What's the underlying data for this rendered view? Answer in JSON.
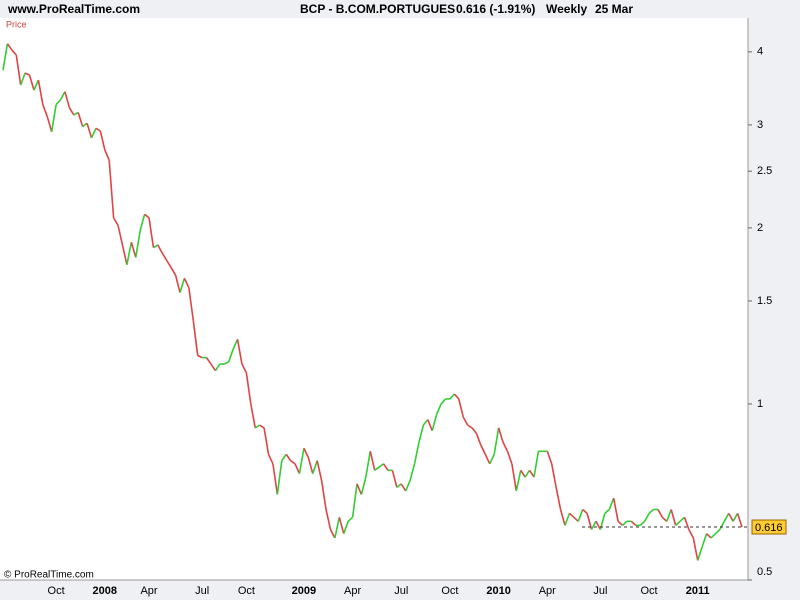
{
  "header": {
    "site": "www.ProRealTime.com",
    "symbol": "BCP - B.COM.PORTUGUES",
    "quote": "0.616 (-1.91%)",
    "period": "Weekly",
    "date": "25 Mar"
  },
  "footer": "© ProRealTime.com",
  "chart_data": {
    "type": "line",
    "log_scale": true,
    "grid": false,
    "categories": [
      null,
      null,
      null,
      null,
      null,
      null,
      null,
      null,
      null,
      null,
      null,
      null,
      "Oct",
      null,
      null,
      null,
      null,
      null,
      null,
      null,
      null,
      null,
      null,
      "2008",
      null,
      null,
      null,
      null,
      null,
      null,
      null,
      null,
      null,
      "Apr",
      null,
      null,
      null,
      null,
      null,
      null,
      null,
      null,
      null,
      null,
      null,
      "Jul",
      null,
      null,
      null,
      null,
      null,
      null,
      null,
      null,
      null,
      "Oct",
      null,
      null,
      null,
      null,
      null,
      null,
      null,
      null,
      null,
      null,
      null,
      null,
      "2009",
      null,
      null,
      null,
      null,
      null,
      null,
      null,
      null,
      null,
      null,
      "Apr",
      null,
      null,
      null,
      null,
      null,
      null,
      null,
      null,
      null,
      null,
      "Jul",
      null,
      null,
      null,
      null,
      null,
      null,
      null,
      null,
      null,
      null,
      "Oct",
      null,
      null,
      null,
      null,
      null,
      null,
      null,
      null,
      null,
      null,
      "2010",
      null,
      null,
      null,
      null,
      null,
      null,
      null,
      null,
      null,
      null,
      "Apr",
      null,
      null,
      null,
      null,
      null,
      null,
      null,
      null,
      null,
      null,
      null,
      "Jul",
      null,
      null,
      null,
      null,
      null,
      null,
      null,
      null,
      null,
      null,
      "Oct",
      null,
      null,
      null,
      null,
      null,
      null,
      null,
      null,
      null,
      null,
      "2011",
      null,
      null,
      null,
      null,
      null,
      null,
      null,
      null,
      null,
      null
    ],
    "series": [
      {
        "name": "Price",
        "up_color": "#33cc33",
        "down_color": "#dd4444",
        "values": [
          3.72,
          4.13,
          4.03,
          3.95,
          3.51,
          3.68,
          3.65,
          3.44,
          3.58,
          3.25,
          3.1,
          2.92,
          3.25,
          3.31,
          3.42,
          3.21,
          3.12,
          3.15,
          2.98,
          3.02,
          2.85,
          2.96,
          2.93,
          2.72,
          2.61,
          2.08,
          2.02,
          1.87,
          1.73,
          1.89,
          1.78,
          1.98,
          2.11,
          2.08,
          1.85,
          1.87,
          1.81,
          1.76,
          1.71,
          1.66,
          1.55,
          1.64,
          1.58,
          1.39,
          1.21,
          1.2,
          1.2,
          1.17,
          1.14,
          1.17,
          1.17,
          1.18,
          1.24,
          1.29,
          1.17,
          1.13,
          1.0,
          0.91,
          0.92,
          0.91,
          0.82,
          0.79,
          0.7,
          0.8,
          0.82,
          0.8,
          0.79,
          0.76,
          0.84,
          0.81,
          0.76,
          0.8,
          0.74,
          0.66,
          0.61,
          0.59,
          0.64,
          0.6,
          0.63,
          0.64,
          0.73,
          0.7,
          0.75,
          0.83,
          0.77,
          0.78,
          0.79,
          0.77,
          0.77,
          0.72,
          0.73,
          0.71,
          0.74,
          0.79,
          0.86,
          0.92,
          0.94,
          0.9,
          0.96,
          1.0,
          1.02,
          1.02,
          1.04,
          1.02,
          0.95,
          0.92,
          0.91,
          0.89,
          0.85,
          0.82,
          0.79,
          0.82,
          0.91,
          0.86,
          0.83,
          0.79,
          0.71,
          0.77,
          0.75,
          0.77,
          0.75,
          0.83,
          0.83,
          0.83,
          0.79,
          0.72,
          0.66,
          0.62,
          0.65,
          0.64,
          0.63,
          0.66,
          0.65,
          0.61,
          0.63,
          0.61,
          0.65,
          0.66,
          0.69,
          0.63,
          0.62,
          0.63,
          0.63,
          0.62,
          0.62,
          0.63,
          0.65,
          0.66,
          0.66,
          0.64,
          0.63,
          0.66,
          0.62,
          0.63,
          0.64,
          0.61,
          0.59,
          0.54,
          0.57,
          0.6,
          0.59,
          0.6,
          0.61,
          0.63,
          0.65,
          0.63,
          0.65,
          0.616
        ]
      }
    ],
    "ylim": [
      0.5,
      4.57
    ],
    "yticks": [
      0.5,
      1,
      1.5,
      2,
      2.5,
      3,
      4
    ],
    "last_value_color": "#ffcc33"
  }
}
